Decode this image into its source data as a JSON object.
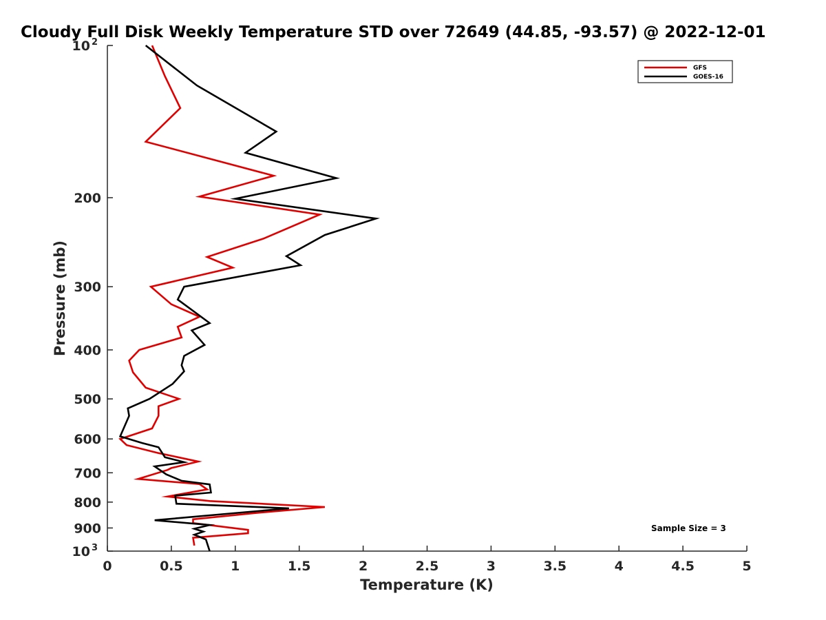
{
  "chart_data": {
    "type": "line",
    "title": "Cloudy Full Disk Weekly Temperature STD over 72649 (44.85, -93.57) @ 2022-12-01",
    "xlabel": "Temperature (K)",
    "ylabel": "Pressure (mb)",
    "xlim": [
      0,
      5
    ],
    "ylim": [
      100,
      1000
    ],
    "y_scale": "log",
    "y_reversed": true,
    "grid": false,
    "legend_position": "top-right",
    "x_ticks": [
      "0",
      "0.5",
      "1",
      "1.5",
      "2",
      "2.5",
      "3",
      "3.5",
      "4",
      "4.5",
      "5"
    ],
    "y_ticks": [
      {
        "value": 100,
        "base": "10",
        "exp": "2"
      },
      {
        "value": 200,
        "label": "200"
      },
      {
        "value": 300,
        "label": "300"
      },
      {
        "value": 400,
        "label": "400"
      },
      {
        "value": 500,
        "label": "500"
      },
      {
        "value": 600,
        "label": "600"
      },
      {
        "value": 700,
        "label": "700"
      },
      {
        "value": 800,
        "label": "800"
      },
      {
        "value": 900,
        "label": "900"
      },
      {
        "value": 1000,
        "base": "10",
        "exp": "3"
      }
    ],
    "annotation": "Sample Size = 3",
    "series": [
      {
        "name": "GFS",
        "color": "#e00000",
        "points": [
          [
            0.35,
            100
          ],
          [
            0.45,
            115
          ],
          [
            0.57,
            133
          ],
          [
            0.3,
            155
          ],
          [
            1.3,
            181
          ],
          [
            0.72,
            199
          ],
          [
            1.66,
            216
          ],
          [
            1.22,
            241
          ],
          [
            0.78,
            262
          ],
          [
            0.98,
            275
          ],
          [
            0.34,
            300
          ],
          [
            0.5,
            325
          ],
          [
            0.72,
            344
          ],
          [
            0.55,
            360
          ],
          [
            0.58,
            378
          ],
          [
            0.25,
            400
          ],
          [
            0.17,
            420
          ],
          [
            0.2,
            443
          ],
          [
            0.3,
            475
          ],
          [
            0.56,
            500
          ],
          [
            0.4,
            517
          ],
          [
            0.4,
            540
          ],
          [
            0.35,
            572
          ],
          [
            0.1,
            600
          ],
          [
            0.15,
            617
          ],
          [
            0.4,
            640
          ],
          [
            0.71,
            665
          ],
          [
            0.5,
            685
          ],
          [
            0.47,
            691
          ],
          [
            0.24,
            720
          ],
          [
            0.72,
            737
          ],
          [
            0.78,
            755
          ],
          [
            0.47,
            780
          ],
          [
            0.8,
            796
          ],
          [
            1.7,
            818
          ],
          [
            1.15,
            841
          ],
          [
            0.67,
            865
          ],
          [
            0.67,
            880
          ],
          [
            1.1,
            908
          ],
          [
            1.1,
            922
          ],
          [
            0.67,
            941
          ],
          [
            0.68,
            975
          ]
        ]
      },
      {
        "name": "GOES-16",
        "color": "#000000",
        "points": [
          [
            0.3,
            100
          ],
          [
            0.7,
            120
          ],
          [
            1.32,
            148
          ],
          [
            1.08,
            163
          ],
          [
            1.79,
            183
          ],
          [
            1.0,
            201
          ],
          [
            2.1,
            220
          ],
          [
            1.7,
            237
          ],
          [
            1.4,
            261
          ],
          [
            1.51,
            272
          ],
          [
            0.6,
            300
          ],
          [
            0.55,
            318
          ],
          [
            0.8,
            354
          ],
          [
            0.66,
            366
          ],
          [
            0.76,
            391
          ],
          [
            0.6,
            411
          ],
          [
            0.58,
            429
          ],
          [
            0.6,
            441
          ],
          [
            0.51,
            467
          ],
          [
            0.33,
            500
          ],
          [
            0.16,
            522
          ],
          [
            0.17,
            540
          ],
          [
            0.1,
            593
          ],
          [
            0.27,
            611
          ],
          [
            0.4,
            623
          ],
          [
            0.45,
            652
          ],
          [
            0.6,
            667
          ],
          [
            0.37,
            680
          ],
          [
            0.46,
            705
          ],
          [
            0.58,
            726
          ],
          [
            0.8,
            738
          ],
          [
            0.81,
            766
          ],
          [
            0.53,
            777
          ],
          [
            0.54,
            806
          ],
          [
            1.42,
            823
          ],
          [
            0.37,
            869
          ],
          [
            0.8,
            888
          ],
          [
            0.68,
            903
          ],
          [
            0.75,
            915
          ],
          [
            0.68,
            928
          ],
          [
            0.77,
            948
          ],
          [
            0.8,
            1000
          ]
        ]
      }
    ]
  }
}
